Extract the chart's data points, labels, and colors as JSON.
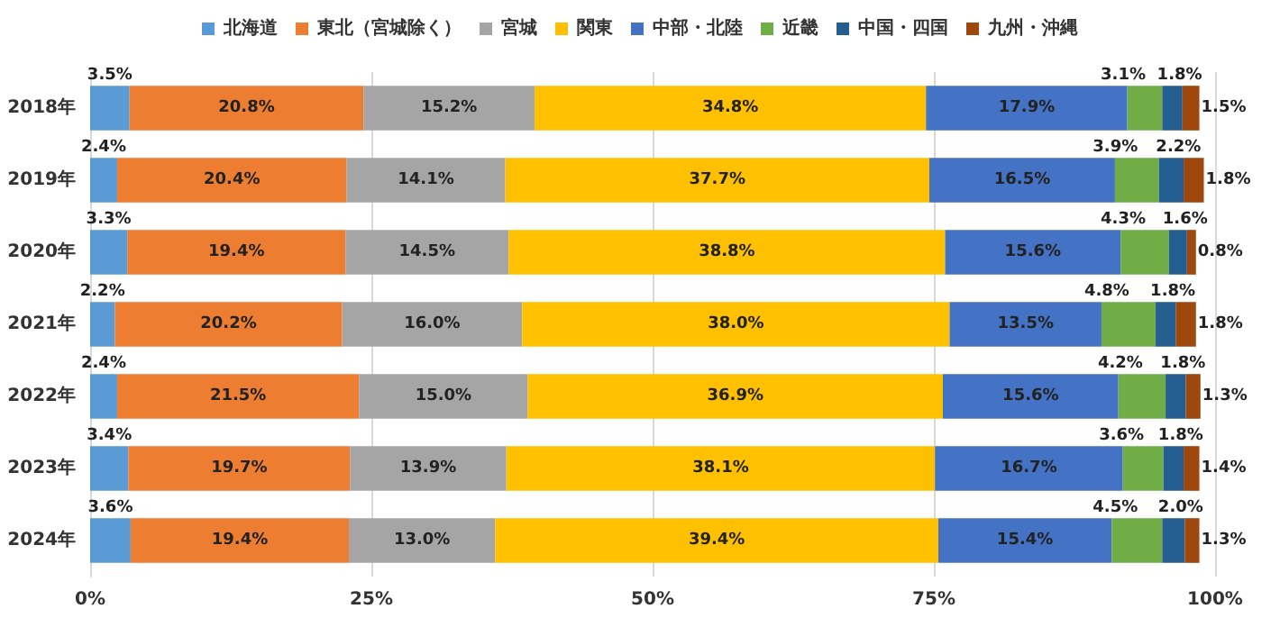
{
  "chart_data": {
    "type": "bar",
    "orientation": "horizontal",
    "stacked": true,
    "categories": [
      "2018年",
      "2019年",
      "2020年",
      "2021年",
      "2022年",
      "2023年",
      "2024年"
    ],
    "series": [
      {
        "name": "北海道",
        "color": "#5b9bd5",
        "values": [
          3.5,
          2.4,
          3.3,
          2.2,
          2.4,
          3.4,
          3.6
        ],
        "value_labels": [
          "3.5%",
          "2.4%",
          "3.3%",
          "2.2%",
          "2.4%",
          "3.4%",
          "3.6%"
        ]
      },
      {
        "name": "東北（宮城除く）",
        "color": "#ed7d31",
        "values": [
          20.8,
          20.4,
          19.4,
          20.2,
          21.5,
          19.7,
          19.4
        ],
        "value_labels": [
          "20.8%",
          "20.4%",
          "19.4%",
          "20.2%",
          "21.5%",
          "19.7%",
          "19.4%"
        ]
      },
      {
        "name": "宮城",
        "color": "#a5a5a5",
        "values": [
          15.2,
          14.1,
          14.5,
          16.0,
          15.0,
          13.9,
          13.0
        ],
        "value_labels": [
          "15.2%",
          "14.1%",
          "14.5%",
          "16.0%",
          "15.0%",
          "13.9%",
          "13.0%"
        ]
      },
      {
        "name": "関東",
        "color": "#ffc000",
        "values": [
          34.8,
          37.7,
          38.8,
          38.0,
          36.9,
          38.1,
          39.4
        ],
        "value_labels": [
          "34.8%",
          "37.7%",
          "38.8%",
          "38.0%",
          "36.9%",
          "38.1%",
          "39.4%"
        ]
      },
      {
        "name": "中部・北陸",
        "color": "#4472c4",
        "values": [
          17.9,
          16.5,
          15.6,
          13.5,
          15.6,
          16.7,
          15.4
        ],
        "value_labels": [
          "17.9%",
          "16.5%",
          "15.6%",
          "13.5%",
          "15.6%",
          "16.7%",
          "15.4%"
        ]
      },
      {
        "name": "近畿",
        "color": "#70ad47",
        "values": [
          3.1,
          3.9,
          4.3,
          4.8,
          4.2,
          3.6,
          4.5
        ],
        "value_labels": [
          "3.1%",
          "3.9%",
          "4.3%",
          "4.8%",
          "4.2%",
          "3.6%",
          "4.5%"
        ]
      },
      {
        "name": "中国・四国",
        "color": "#255e91",
        "values": [
          1.8,
          2.2,
          1.6,
          1.8,
          1.8,
          1.8,
          2.0
        ],
        "value_labels": [
          "1.8%",
          "2.2%",
          "1.6%",
          "1.8%",
          "1.8%",
          "1.8%",
          "2.0%"
        ]
      },
      {
        "name": "九州・沖縄",
        "color": "#9e480e",
        "values": [
          1.5,
          1.8,
          0.8,
          1.8,
          1.3,
          1.4,
          1.3
        ],
        "value_labels": [
          "1.5%",
          "1.8%",
          "0.8%",
          "1.8%",
          "1.3%",
          "1.4%",
          "1.3%"
        ]
      }
    ],
    "xlim": [
      0,
      100
    ],
    "xticks": [
      {
        "value": 0,
        "label": "0%"
      },
      {
        "value": 25,
        "label": "25%"
      },
      {
        "value": 50,
        "label": "50%"
      },
      {
        "value": 75,
        "label": "75%"
      },
      {
        "value": 100,
        "label": "100%"
      }
    ],
    "grid": "x",
    "legend": "top"
  }
}
